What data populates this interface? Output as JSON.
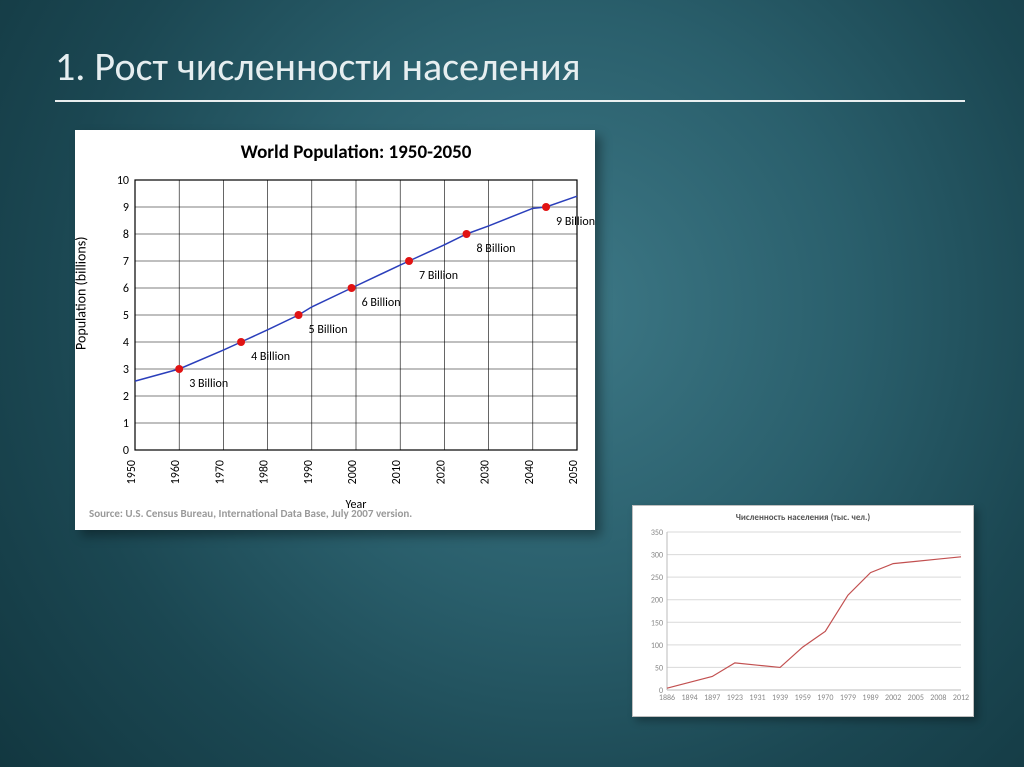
{
  "slide": {
    "title": "1. Рост численности населения",
    "background_gradient": [
      "#3d7886",
      "#2a5f6c",
      "#1b4752",
      "#123740"
    ]
  },
  "main_chart": {
    "type": "line",
    "title": "World Population: 1950-2050",
    "title_fontsize": 19,
    "x_label": "Year",
    "y_label": "Population (billions)",
    "label_fontsize": 14,
    "xlim": [
      1950,
      2050
    ],
    "ylim": [
      0,
      10
    ],
    "xtick_step": 10,
    "ytick_step": 1,
    "xticks": [
      1950,
      1960,
      1970,
      1980,
      1990,
      2000,
      2010,
      2020,
      2030,
      2040,
      2050
    ],
    "yticks": [
      0,
      1,
      2,
      3,
      4,
      5,
      6,
      7,
      8,
      9,
      10
    ],
    "line_color": "#2b3fbb",
    "line_width": 1.5,
    "marker_color": "#e11313",
    "marker_size": 4,
    "grid_color": "#000000",
    "background_color": "#ffffff",
    "line_points": [
      {
        "x": 1950,
        "y": 2.55
      },
      {
        "x": 1960,
        "y": 3.0
      },
      {
        "x": 1970,
        "y": 3.7
      },
      {
        "x": 1974,
        "y": 4.0
      },
      {
        "x": 1980,
        "y": 4.45
      },
      {
        "x": 1987,
        "y": 5.0
      },
      {
        "x": 1990,
        "y": 5.3
      },
      {
        "x": 1999,
        "y": 6.0
      },
      {
        "x": 2010,
        "y": 6.85
      },
      {
        "x": 2012,
        "y": 7.0
      },
      {
        "x": 2020,
        "y": 7.6
      },
      {
        "x": 2025,
        "y": 8.0
      },
      {
        "x": 2030,
        "y": 8.3
      },
      {
        "x": 2040,
        "y": 8.95
      },
      {
        "x": 2043,
        "y": 9.0
      },
      {
        "x": 2050,
        "y": 9.4
      }
    ],
    "markers": [
      {
        "x": 1960,
        "y": 3,
        "label": "3 Billion"
      },
      {
        "x": 1974,
        "y": 4,
        "label": "4 Billion"
      },
      {
        "x": 1987,
        "y": 5,
        "label": "5 Billion"
      },
      {
        "x": 1999,
        "y": 6,
        "label": "6 Billion"
      },
      {
        "x": 2012,
        "y": 7,
        "label": "7 Billion"
      },
      {
        "x": 2025,
        "y": 8,
        "label": "8 Billion"
      },
      {
        "x": 2043,
        "y": 9,
        "label": "9 Billion"
      }
    ],
    "source_text": "Source: U.S. Census Bureau, International Data Base, July 2007 version."
  },
  "small_chart": {
    "type": "line",
    "title": "Численность населения (тыс. чел.)",
    "title_fontsize": 9,
    "xlim": [
      1886,
      2012
    ],
    "ylim": [
      0,
      350
    ],
    "ytick_step": 50,
    "yticks": [
      0,
      50,
      100,
      150,
      200,
      250,
      300,
      350
    ],
    "xticks": [
      1886,
      1894,
      1897,
      1923,
      1931,
      1939,
      1959,
      1970,
      1979,
      1989,
      2002,
      2005,
      2008,
      2012
    ],
    "line_color": "#c25050",
    "line_width": 1.2,
    "grid_color": "#d9d9d9",
    "background_color": "#ffffff",
    "points": [
      {
        "x": 1886,
        "y": 4
      },
      {
        "x": 1894,
        "y": 17
      },
      {
        "x": 1897,
        "y": 30
      },
      {
        "x": 1923,
        "y": 60
      },
      {
        "x": 1931,
        "y": 55
      },
      {
        "x": 1939,
        "y": 50
      },
      {
        "x": 1959,
        "y": 95
      },
      {
        "x": 1970,
        "y": 130
      },
      {
        "x": 1979,
        "y": 210
      },
      {
        "x": 1989,
        "y": 260
      },
      {
        "x": 2002,
        "y": 280
      },
      {
        "x": 2005,
        "y": 285
      },
      {
        "x": 2008,
        "y": 290
      },
      {
        "x": 2012,
        "y": 295
      }
    ]
  }
}
